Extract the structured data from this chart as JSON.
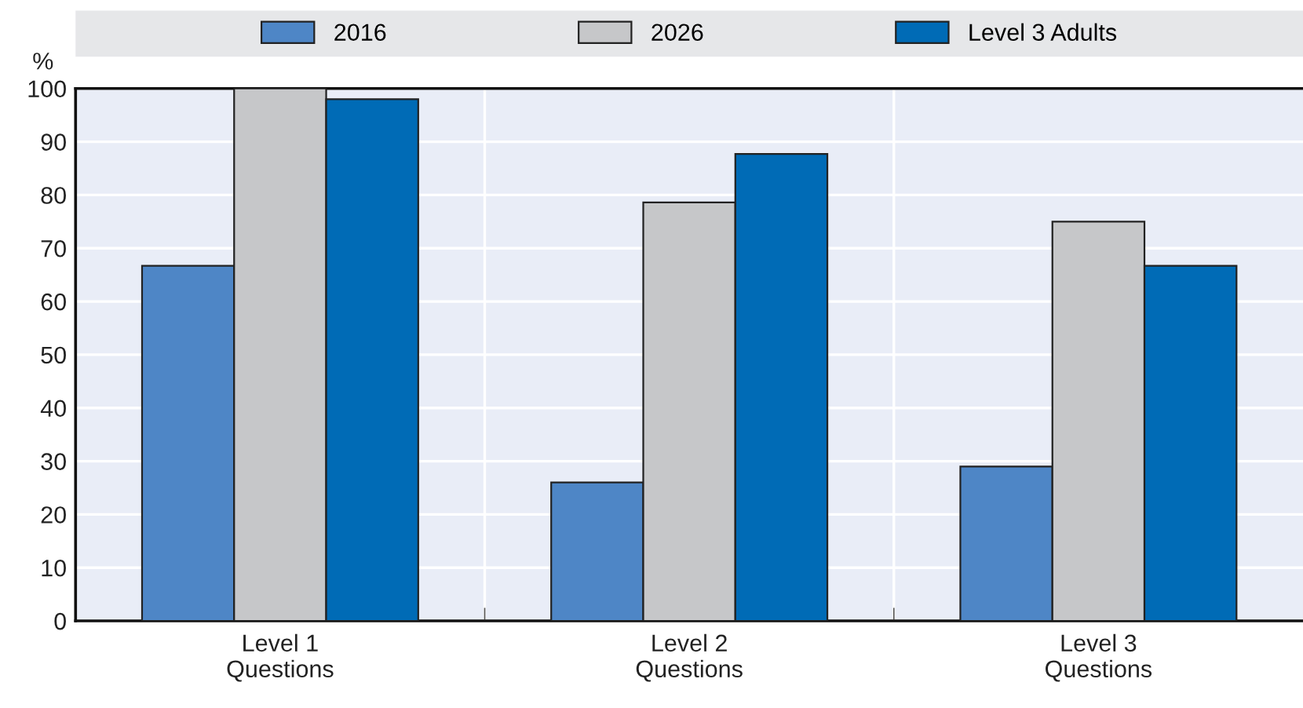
{
  "chart_data": {
    "type": "bar",
    "ylabel": "%",
    "categories": [
      "Level 1\nQuestions",
      "Level 2\nQuestions",
      "Level 3\nQuestions"
    ],
    "series": [
      {
        "name": "2016",
        "color": "#4e86c6",
        "values": [
          66.7,
          26,
          29
        ]
      },
      {
        "name": "2026",
        "color": "#c6c7c9",
        "values": [
          100,
          78.6,
          75
        ]
      },
      {
        "name": "Level 3 Adults",
        "color": "#006bb6",
        "values": [
          98,
          87.7,
          66.7
        ]
      }
    ],
    "ylim": [
      0,
      100
    ],
    "yticks": [
      0,
      10,
      20,
      30,
      40,
      50,
      60,
      70,
      80,
      90,
      100
    ],
    "grid": true,
    "legend": "top"
  }
}
